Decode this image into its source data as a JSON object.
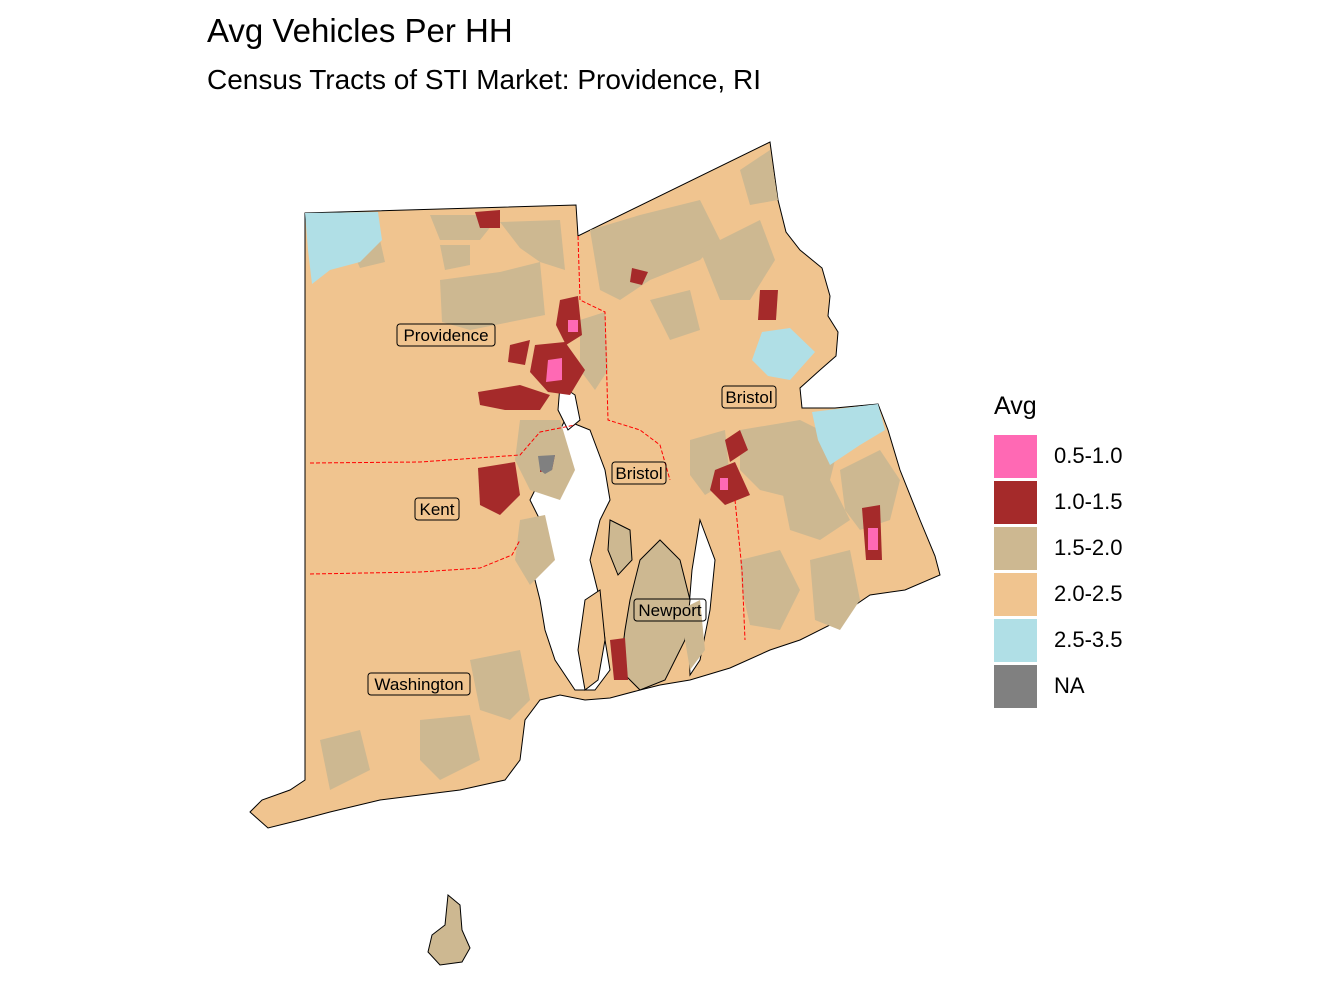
{
  "title": "Avg Vehicles Per HH",
  "subtitle": "Census Tracts of STI Market: Providence, RI",
  "legend": {
    "title": "Avg",
    "items": [
      {
        "label": "0.5-1.0",
        "color": "#FF69B4"
      },
      {
        "label": "1.0-1.5",
        "color": "#A52A2A"
      },
      {
        "label": "1.5-2.0",
        "color": "#CDB891"
      },
      {
        "label": "2.0-2.5",
        "color": "#F0C48F"
      },
      {
        "label": "2.5-3.5",
        "color": "#B0DFE6"
      },
      {
        "label": "NA",
        "color": "#808080"
      }
    ]
  },
  "counties": [
    {
      "name": "Providence"
    },
    {
      "name": "Bristol"
    },
    {
      "name": "Bristol"
    },
    {
      "name": "Kent"
    },
    {
      "name": "Newport"
    },
    {
      "name": "Washington"
    }
  ]
}
